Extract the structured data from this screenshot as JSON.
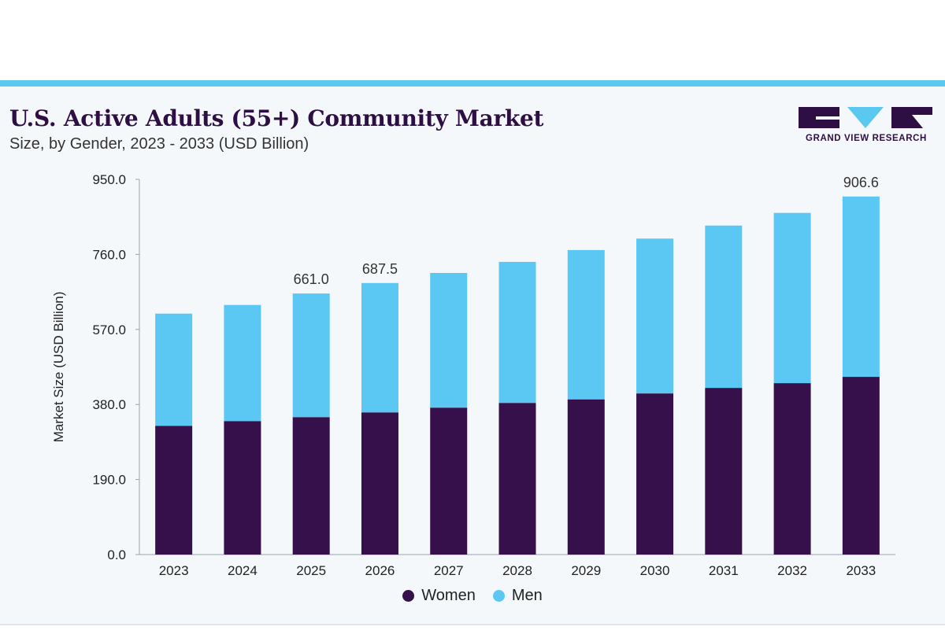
{
  "header": {
    "title": "U.S. Active Adults (55+) Community Market",
    "subtitle": "Size, by Gender, 2023 - 2033 (USD Billion)"
  },
  "logo": {
    "text": "GRAND VIEW RESEARCH",
    "color": "#2e0f44",
    "accent": "#5bc8ef"
  },
  "colors": {
    "women": "#35104a",
    "men": "#5bc8f3",
    "top_bar": "#5bc8ef",
    "panel": "#f4f8fb"
  },
  "chart_data": {
    "type": "bar",
    "stacked": true,
    "title": "U.S. Active Adults (55+) Community Market",
    "subtitle": "Size, by Gender, 2023 - 2033 (USD Billion)",
    "xlabel": "",
    "ylabel": "Market Size (USD Billion)",
    "ylim": [
      0,
      950
    ],
    "yticks": [
      "0.0",
      "190.0",
      "380.0",
      "570.0",
      "760.0",
      "950.0"
    ],
    "categories": [
      "2023",
      "2024",
      "2025",
      "2026",
      "2027",
      "2028",
      "2029",
      "2030",
      "2031",
      "2032",
      "2033"
    ],
    "series": [
      {
        "name": "Women",
        "values": [
          326,
          338,
          348,
          360,
          372,
          384,
          393,
          408,
          422,
          434,
          450
        ]
      },
      {
        "name": "Men",
        "values": [
          284,
          294,
          313,
          327.5,
          341,
          357,
          378,
          392,
          411,
          431,
          456.6
        ]
      }
    ],
    "data_labels": [
      {
        "category": "2025",
        "text": "661.0"
      },
      {
        "category": "2026",
        "text": "687.5"
      },
      {
        "category": "2033",
        "text": "906.6"
      }
    ],
    "grid": false,
    "legend": "bottom-center"
  }
}
